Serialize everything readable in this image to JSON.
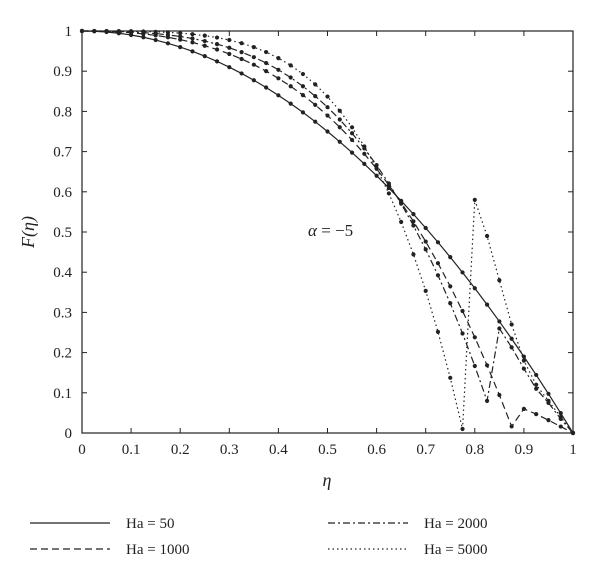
{
  "chart_data": {
    "type": "line",
    "xlabel": "η",
    "ylabel": "F(η)",
    "xlim": [
      0,
      1
    ],
    "ylim": [
      0,
      1
    ],
    "x_ticks": [
      "0",
      "0.1",
      "0.2",
      "0.3",
      "0.4",
      "0.5",
      "0.6",
      "0.7",
      "0.8",
      "0.9",
      "1"
    ],
    "y_ticks": [
      "0",
      "0.1",
      "0.2",
      "0.3",
      "0.4",
      "0.5",
      "0.6",
      "0.7",
      "0.8",
      "0.9",
      "1"
    ],
    "grid": false,
    "annotation": {
      "symbol": "α",
      "text": " = −5"
    },
    "legend_position": "bottom",
    "x": [
      0,
      0.025,
      0.05,
      0.075,
      0.1,
      0.125,
      0.15,
      0.175,
      0.2,
      0.225,
      0.25,
      0.275,
      0.3,
      0.325,
      0.35,
      0.375,
      0.4,
      0.425,
      0.45,
      0.475,
      0.5,
      0.525,
      0.55,
      0.575,
      0.6,
      0.625,
      0.65,
      0.675,
      0.7,
      0.725,
      0.75,
      0.775,
      0.8,
      0.825,
      0.85,
      0.875,
      0.9,
      0.925,
      0.95,
      0.975,
      1
    ],
    "series": [
      {
        "name": "Ha = 50",
        "dash": "solid",
        "values": [
          1,
          0.9994,
          0.9975,
          0.9944,
          0.99,
          0.9844,
          0.9775,
          0.9694,
          0.96,
          0.9494,
          0.9375,
          0.9244,
          0.91,
          0.8944,
          0.8775,
          0.8594,
          0.84,
          0.8194,
          0.7975,
          0.7744,
          0.75,
          0.7244,
          0.6975,
          0.6694,
          0.64,
          0.6094,
          0.5775,
          0.5444,
          0.51,
          0.4744,
          0.4375,
          0.3994,
          0.36,
          0.3194,
          0.2775,
          0.2344,
          0.19,
          0.1444,
          0.0975,
          0.0494,
          0
        ]
      },
      {
        "name": "Ha = 1000",
        "dash": "dashed",
        "values": [
          1,
          0.9998,
          0.999,
          0.9977,
          0.9956,
          0.9928,
          0.989,
          0.9843,
          0.9786,
          0.9716,
          0.9634,
          0.9539,
          0.9429,
          0.9304,
          0.9162,
          0.9002,
          0.8823,
          0.8625,
          0.8405,
          0.8163,
          0.7897,
          0.7606,
          0.729,
          0.6945,
          0.6572,
          0.6169,
          0.5733,
          0.5265,
          0.4762,
          0.4224,
          0.3648,
          0.3034,
          0.238,
          0.1684,
          0.0946,
          0.0164,
          0.06,
          0.047,
          0.032,
          0.016,
          0
        ]
      },
      {
        "name": "Ha = 2000",
        "dash": "dashdot",
        "values": [
          1,
          0.9999,
          0.9995,
          0.9987,
          0.9976,
          0.9959,
          0.9936,
          0.9904,
          0.9864,
          0.9813,
          0.975,
          0.9674,
          0.9583,
          0.9475,
          0.9349,
          0.9203,
          0.9035,
          0.8843,
          0.8625,
          0.838,
          0.8105,
          0.7798,
          0.7456,
          0.7079,
          0.6663,
          0.6206,
          0.5706,
          0.516,
          0.4567,
          0.3923,
          0.3227,
          0.2476,
          0.1667,
          0.0799,
          0.26,
          0.213,
          0.16,
          0.11,
          0.075,
          0.035,
          0
        ]
      },
      {
        "name": "Ha = 5000",
        "dash": "dotted",
        "values": [
          1,
          1,
          0.9999,
          0.9997,
          0.9994,
          0.9988,
          0.9979,
          0.9966,
          0.9947,
          0.9921,
          0.9885,
          0.9837,
          0.9776,
          0.9697,
          0.9598,
          0.9476,
          0.9326,
          0.9145,
          0.8929,
          0.8672,
          0.8369,
          0.8015,
          0.7604,
          0.7129,
          0.6583,
          0.5959,
          0.5249,
          0.4444,
          0.3536,
          0.2516,
          0.1373,
          0.0099,
          0.58,
          0.49,
          0.38,
          0.27,
          0.18,
          0.12,
          0.08,
          0.04,
          0
        ]
      }
    ]
  }
}
